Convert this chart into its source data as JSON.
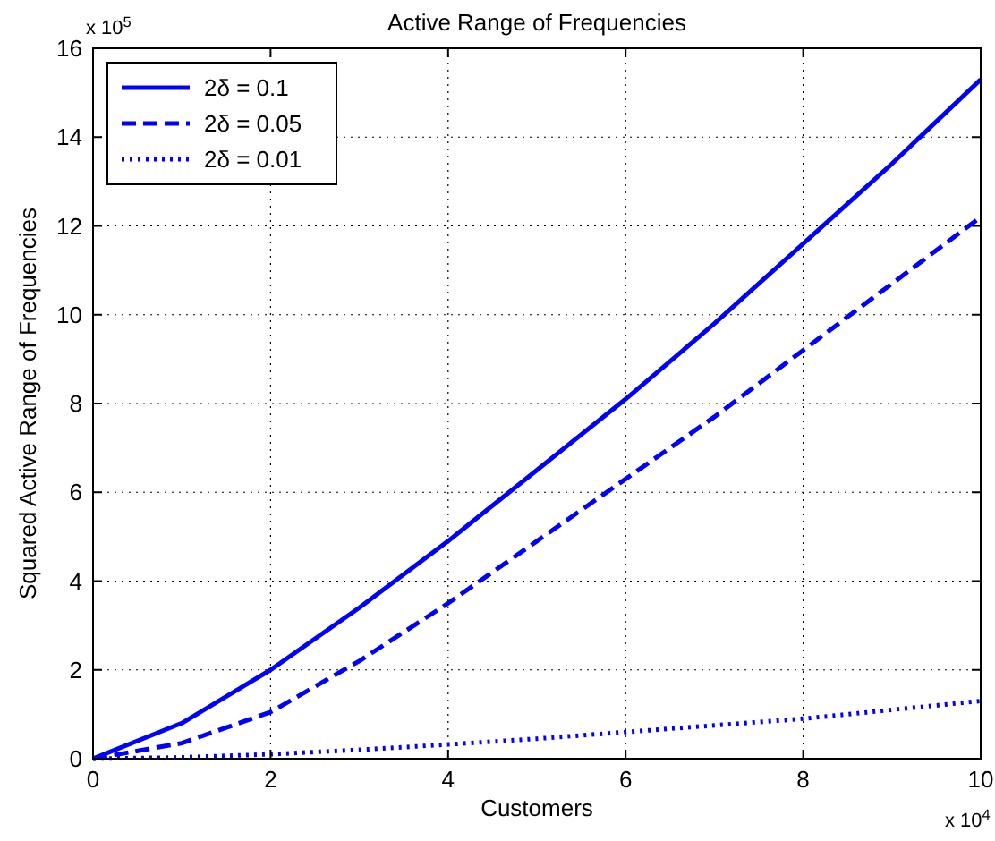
{
  "chart_data": {
    "type": "line",
    "title": "Active Range of Frequencies",
    "xlabel": "Customers",
    "ylabel": "Squared Active Range of Frequencies",
    "annotations": [
      "x 10$^{5}$",
      "x 10$^{4}$"
    ],
    "x": [
      0,
      1,
      2,
      3,
      4,
      5,
      6,
      7,
      8,
      9,
      10
    ],
    "series": [
      {
        "name": "2δ = 0.1",
        "color": "#0000ff",
        "line_style": "solid",
        "values": [
          0,
          0.8,
          2.0,
          3.4,
          4.9,
          6.5,
          8.1,
          9.8,
          11.6,
          13.4,
          15.3
        ]
      },
      {
        "name": "2δ = 0.05",
        "color": "#0000ff",
        "line_style": "dashed",
        "values": [
          0,
          0.35,
          1.05,
          2.2,
          3.5,
          4.9,
          6.3,
          7.7,
          9.2,
          10.7,
          12.2
        ]
      },
      {
        "name": "2δ = 0.01",
        "color": "#0000ff",
        "line_style": "dotted",
        "values": [
          0,
          0.03,
          0.1,
          0.2,
          0.32,
          0.45,
          0.6,
          0.75,
          0.9,
          1.1,
          1.3
        ]
      }
    ],
    "xlim": [
      0,
      10
    ],
    "xticks": [
      0,
      2,
      4,
      6,
      8,
      10
    ],
    "ylim": [
      0,
      16
    ],
    "yticks": [
      0,
      2,
      4,
      6,
      8,
      10,
      12,
      14,
      16
    ],
    "grid": true,
    "legend": "top left",
    "marker": "none"
  }
}
